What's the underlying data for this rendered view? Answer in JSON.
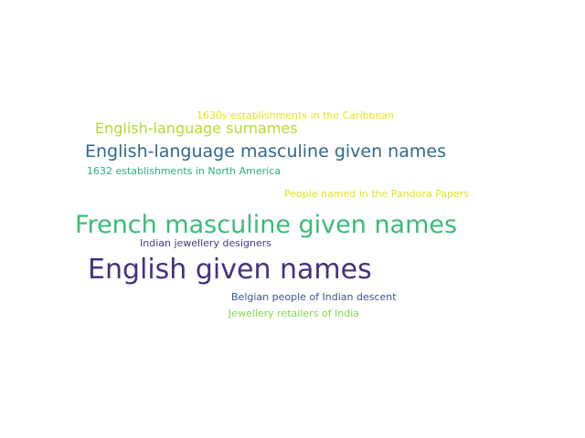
{
  "words": [
    {
      "text": "1630s establishments in the Caribbean",
      "color": "#e6e419"
    },
    {
      "text": "English-language surnames",
      "color": "#b3dc2b"
    },
    {
      "text": "English-language masculine given names",
      "color": "#31688e"
    },
    {
      "text": "1632 establishments in North America",
      "color": "#2ab07f"
    },
    {
      "text": "People named in the Pandora Papers",
      "color": "#e3e418"
    },
    {
      "text": "French masculine given names",
      "color": "#3bbb75"
    },
    {
      "text": "Indian jewellery designers",
      "color": "#433e85"
    },
    {
      "text": "English given names",
      "color": "#46307e"
    },
    {
      "text": "Belgian people of Indian descent",
      "color": "#3b528b"
    },
    {
      "text": "Jewellery retailers of India",
      "color": "#85d54a"
    }
  ]
}
